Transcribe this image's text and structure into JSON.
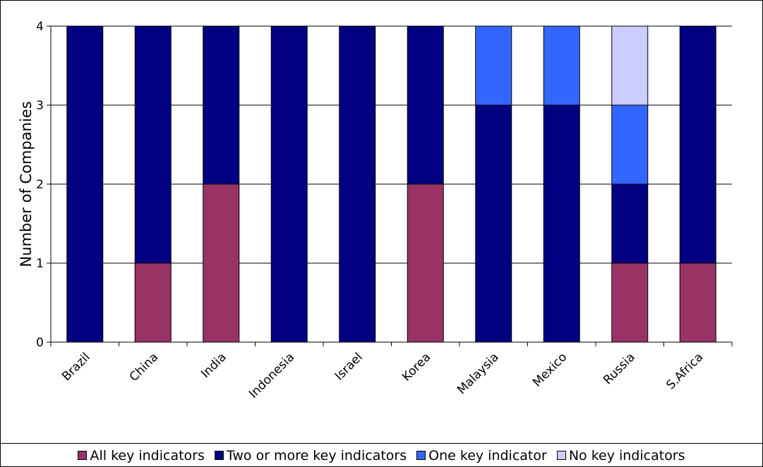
{
  "chart_data": {
    "type": "bar",
    "stacked": true,
    "title": "",
    "xlabel": "",
    "ylabel": "Number of Companies",
    "ylim": [
      0,
      4
    ],
    "yticks": [
      0,
      1,
      2,
      3,
      4
    ],
    "grid": true,
    "legend_position": "bottom",
    "categories": [
      "Brazil",
      "China",
      "India",
      "Indonesia",
      "Israel",
      "Korea",
      "Malaysia",
      "Mexico",
      "Russia",
      "S.Africa"
    ],
    "series": [
      {
        "name": "All key indicators",
        "color": "#993366",
        "values": [
          0,
          1,
          2,
          0,
          0,
          2,
          0,
          0,
          1,
          1
        ]
      },
      {
        "name": "Two or more key indicators",
        "color": "#000080",
        "values": [
          4,
          3,
          2,
          4,
          4,
          2,
          3,
          3,
          1,
          3
        ]
      },
      {
        "name": "One key indicator",
        "color": "#3366FF",
        "values": [
          0,
          0,
          0,
          0,
          0,
          0,
          1,
          1,
          1,
          0
        ]
      },
      {
        "name": "No key indicators",
        "color": "#CCCCFF",
        "values": [
          0,
          0,
          0,
          0,
          0,
          0,
          0,
          0,
          1,
          0
        ]
      }
    ]
  }
}
